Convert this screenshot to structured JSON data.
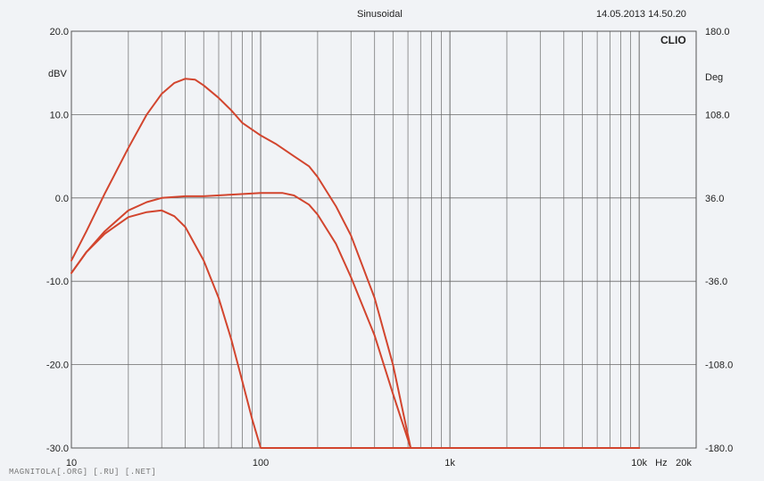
{
  "header": {
    "title": "Sinusoidal",
    "timestamp": "14.05.2013 14.50.20",
    "brand": "CLIO"
  },
  "watermark": "MAGNITOLA[.ORG] [.RU] [.NET]",
  "colors": {
    "curve": "#d2452e",
    "grid": "#6a6a6a",
    "background": "#f1f3f6"
  },
  "chart_data": {
    "type": "line",
    "title": "Sinusoidal",
    "x_scale": "log",
    "xlim": [
      10,
      20000
    ],
    "ylim": [
      -30,
      20
    ],
    "y2lim": [
      -180,
      180
    ],
    "x_ticks": [
      {
        "value": 10,
        "label": "10"
      },
      {
        "value": 100,
        "label": "100"
      },
      {
        "value": 1000,
        "label": "1k"
      },
      {
        "value": 10000,
        "label": "10k"
      },
      {
        "value": 20000,
        "label": "20k"
      }
    ],
    "x_unit": "Hz",
    "y_ticks": [
      {
        "value": 20,
        "label": "20.0"
      },
      {
        "value": 10,
        "label": "10.0"
      },
      {
        "value": 0,
        "label": "0.0"
      },
      {
        "value": -10,
        "label": "-10.0"
      },
      {
        "value": -20,
        "label": "-20.0"
      },
      {
        "value": -30,
        "label": "-30.0"
      }
    ],
    "y_unit": "dBV",
    "y2_ticks": [
      {
        "value": 180,
        "label": "180.0"
      },
      {
        "value": 108,
        "label": "108.0"
      },
      {
        "value": 36,
        "label": "36.0"
      },
      {
        "value": -36,
        "label": "-36.0"
      },
      {
        "value": -108,
        "label": "-108.0"
      },
      {
        "value": -180,
        "label": "-180.0"
      }
    ],
    "y2_unit": "Deg",
    "grid": true,
    "series": [
      {
        "x": [
          10,
          12,
          15,
          20,
          25,
          30,
          35,
          40,
          45,
          50,
          60,
          70,
          80,
          100,
          120,
          150,
          180,
          200,
          250,
          300,
          400,
          500,
          620,
          700,
          1000,
          10000
        ],
        "y": [
          -7.5,
          -4,
          0.5,
          6,
          10,
          12.5,
          13.8,
          14.3,
          14.2,
          13.5,
          12,
          10.5,
          9,
          7.5,
          6.5,
          5,
          3.8,
          2.5,
          -1,
          -4.5,
          -12,
          -20,
          -30,
          -30,
          -30,
          -30
        ]
      },
      {
        "x": [
          10,
          12,
          15,
          20,
          25,
          30,
          40,
          50,
          70,
          100,
          130,
          150,
          180,
          200,
          250,
          300,
          400,
          500,
          600,
          620,
          700,
          1000,
          10000
        ],
        "y": [
          -9,
          -6.5,
          -4,
          -1.5,
          -0.5,
          0,
          0.2,
          0.2,
          0.4,
          0.6,
          0.6,
          0.3,
          -0.8,
          -2,
          -5.5,
          -9.5,
          -16.5,
          -23.5,
          -29,
          -30,
          -30,
          -30,
          -30
        ]
      },
      {
        "x": [
          10,
          12,
          15,
          20,
          25,
          30,
          35,
          40,
          50,
          60,
          70,
          80,
          90,
          100,
          150,
          1000,
          10000
        ],
        "y": [
          -9,
          -6.5,
          -4.3,
          -2.3,
          -1.7,
          -1.5,
          -2.2,
          -3.5,
          -7.5,
          -12,
          -17,
          -22,
          -26.5,
          -30,
          -30,
          -30,
          -30
        ]
      }
    ]
  }
}
